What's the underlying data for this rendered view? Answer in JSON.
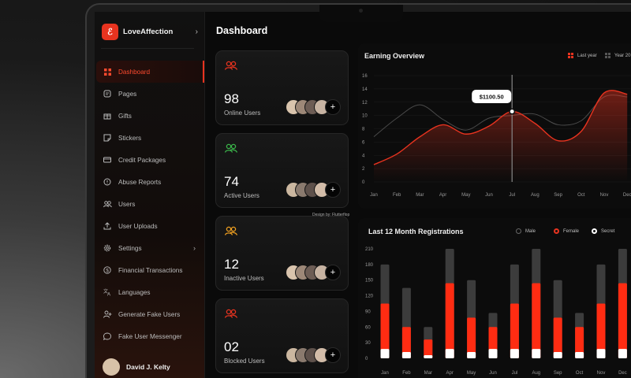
{
  "app": {
    "name": "LoveAffection",
    "logo_glyph": "ℰ"
  },
  "page_title": "Dashboard",
  "sidebar": {
    "items": [
      {
        "label": "Dashboard",
        "icon": "grid-icon",
        "active": true
      },
      {
        "label": "Pages",
        "icon": "page-icon"
      },
      {
        "label": "Gifts",
        "icon": "gift-icon"
      },
      {
        "label": "Stickers",
        "icon": "sticker-icon"
      },
      {
        "label": "Credit Packages",
        "icon": "card-icon"
      },
      {
        "label": "Abuse Reports",
        "icon": "alert-icon"
      },
      {
        "label": "Users",
        "icon": "users-icon"
      },
      {
        "label": "User Uploads",
        "icon": "upload-icon"
      },
      {
        "label": "Settings",
        "icon": "gear-icon",
        "chevron": "›"
      },
      {
        "label": "Financial Transactions",
        "icon": "dollar-icon"
      },
      {
        "label": "Languages",
        "icon": "translate-icon"
      },
      {
        "label": "Generate Fake Users",
        "icon": "add-user-icon"
      },
      {
        "label": "Fake User Messenger",
        "icon": "chat-icon"
      }
    ],
    "user_name": "David J. Kelty"
  },
  "stats": [
    {
      "value": "98",
      "label": "Online Users",
      "icon_color": "#e8331f"
    },
    {
      "value": "74",
      "label": "Active Users",
      "icon_color": "#3bb54a"
    },
    {
      "value": "12",
      "label": "Inactive Users",
      "icon_color": "#f0a020"
    },
    {
      "value": "02",
      "label": "Blocked Users",
      "icon_color": "#e8331f"
    }
  ],
  "avatar_plus": "+",
  "credit": "Design by: Flutterflop",
  "earning": {
    "title": "Earning Overview",
    "legend": [
      "Last year",
      "Year 20"
    ],
    "tooltip": "$1100.50"
  },
  "registrations": {
    "title": "Last 12 Month Registrations",
    "legend": [
      "Male",
      "Female",
      "Secret"
    ]
  },
  "colors": {
    "accent": "#e8331f",
    "gray_bar": "#3c3c3c"
  },
  "chart_data": [
    {
      "type": "line",
      "title": "Earning Overview",
      "categories": [
        "Jan",
        "Feb",
        "Mar",
        "Apr",
        "May",
        "Jun",
        "Jul",
        "Aug",
        "Sep",
        "Oct",
        "Nov",
        "Dec"
      ],
      "yticks": [
        0,
        2,
        4,
        6,
        8,
        10,
        12,
        14,
        16
      ],
      "ylim": [
        0,
        16
      ],
      "series": [
        {
          "name": "Last year",
          "values": [
            2.6,
            4.2,
            6.8,
            8.6,
            7.2,
            8.4,
            10.6,
            8.8,
            6.2,
            7.6,
            13.4,
            13.2
          ]
        },
        {
          "name": "Year 20",
          "values": [
            6.8,
            9.6,
            11.6,
            9.4,
            7.8,
            9.6,
            10.0,
            10.2,
            8.6,
            9.2,
            12.8,
            12.8
          ]
        }
      ],
      "tooltip_index": 6
    },
    {
      "type": "bar",
      "title": "Last 12 Month Registrations",
      "categories": [
        "Jan",
        "Feb",
        "Mar",
        "Apr",
        "May",
        "Jun",
        "Jul",
        "Aug",
        "Sep",
        "Oct",
        "Nov",
        "Dec"
      ],
      "yticks": [
        0,
        30,
        60,
        90,
        120,
        150,
        180,
        210
      ],
      "ylim": [
        0,
        210
      ],
      "series": [
        {
          "name": "Male",
          "values": [
            180,
            135,
            60,
            210,
            150,
            87,
            180,
            210,
            150,
            87,
            180,
            210
          ]
        },
        {
          "name": "Female",
          "values": [
            105,
            60,
            36,
            144,
            78,
            60,
            105,
            144,
            78,
            60,
            105,
            144
          ]
        },
        {
          "name": "Secret",
          "values": [
            18,
            12,
            6,
            18,
            12,
            18,
            18,
            18,
            12,
            12,
            18,
            18
          ]
        }
      ]
    }
  ]
}
